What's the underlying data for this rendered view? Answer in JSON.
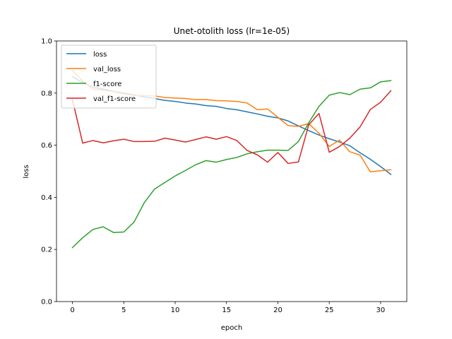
{
  "chart_data": {
    "type": "line",
    "title": "Unet-otolith loss (lr=1e-05)",
    "xlabel": "epoch",
    "ylabel": "loss",
    "xlim": [
      -1.55,
      32.55
    ],
    "ylim": [
      0.0,
      1.0
    ],
    "xticks": [
      0,
      5,
      10,
      15,
      20,
      25,
      30
    ],
    "yticks": [
      0.0,
      0.2,
      0.4,
      0.6,
      0.8,
      1.0
    ],
    "grid": false,
    "legend_position": "upper-left",
    "x": [
      0,
      1,
      2,
      3,
      4,
      5,
      6,
      7,
      8,
      9,
      10,
      11,
      12,
      13,
      14,
      15,
      16,
      17,
      18,
      19,
      20,
      21,
      22,
      23,
      24,
      25,
      26,
      27,
      28,
      29,
      30,
      31
    ],
    "series": [
      {
        "name": "loss",
        "color": "#1f77b4",
        "values": [
          0.863,
          0.84,
          0.823,
          0.815,
          0.807,
          0.8,
          0.793,
          0.785,
          0.779,
          0.772,
          0.768,
          0.762,
          0.758,
          0.752,
          0.749,
          0.741,
          0.736,
          0.728,
          0.72,
          0.711,
          0.705,
          0.693,
          0.674,
          0.656,
          0.639,
          0.625,
          0.612,
          0.598,
          0.571,
          0.546,
          0.518,
          0.488
        ]
      },
      {
        "name": "val_loss",
        "color": "#ff7f0e",
        "values": [
          0.886,
          0.846,
          0.815,
          0.811,
          0.806,
          0.797,
          0.791,
          0.79,
          0.789,
          0.783,
          0.781,
          0.779,
          0.775,
          0.775,
          0.771,
          0.77,
          0.768,
          0.762,
          0.736,
          0.739,
          0.707,
          0.675,
          0.672,
          0.683,
          0.646,
          0.595,
          0.62,
          0.575,
          0.562,
          0.498,
          0.502,
          0.506
        ]
      },
      {
        "name": "f1-score",
        "color": "#2ca02c",
        "values": [
          0.207,
          0.245,
          0.277,
          0.287,
          0.265,
          0.267,
          0.305,
          0.38,
          0.432,
          0.457,
          0.482,
          0.503,
          0.525,
          0.541,
          0.535,
          0.545,
          0.553,
          0.567,
          0.575,
          0.581,
          0.581,
          0.58,
          0.614,
          0.686,
          0.749,
          0.792,
          0.802,
          0.794,
          0.815,
          0.82,
          0.843,
          0.848
        ]
      },
      {
        "name": "val_f1-score",
        "color": "#d62728",
        "values": [
          0.775,
          0.608,
          0.618,
          0.609,
          0.617,
          0.623,
          0.614,
          0.614,
          0.615,
          0.627,
          0.62,
          0.612,
          0.622,
          0.632,
          0.623,
          0.633,
          0.618,
          0.58,
          0.563,
          0.535,
          0.572,
          0.53,
          0.536,
          0.678,
          0.722,
          0.573,
          0.595,
          0.627,
          0.67,
          0.737,
          0.765,
          0.809
        ]
      }
    ]
  }
}
